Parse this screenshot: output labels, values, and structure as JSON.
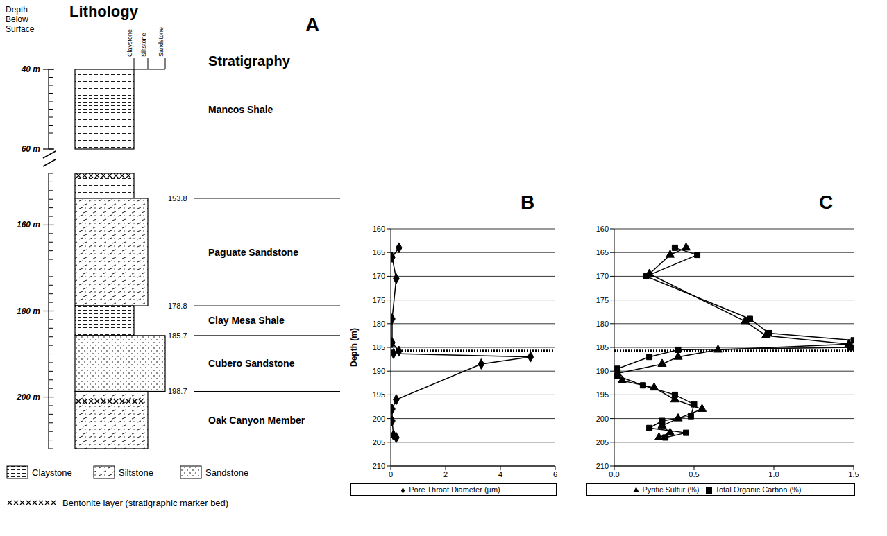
{
  "lithology": {
    "label": "A",
    "title": "Lithology",
    "depth_title": "Depth Below Surface",
    "stratigraphy_title": "Stratigraphy",
    "grain_sizes": [
      "Claystone",
      "Siltstone",
      "Sandstone"
    ],
    "sections": [
      {
        "top": 40,
        "base": 60,
        "ticks": [
          {
            "value": 40,
            "label": "40 m"
          },
          {
            "value": 60,
            "label": "60 m"
          }
        ]
      },
      {
        "top": 148,
        "base": 212,
        "ticks": [
          {
            "value": 160,
            "label": "160 m"
          },
          {
            "value": 180,
            "label": "180 m"
          },
          {
            "value": 200,
            "label": "200 m"
          }
        ]
      }
    ],
    "units": [
      {
        "name": "Mancos Shale",
        "lithology": "Claystone",
        "base": 153.8
      },
      {
        "name": "Paguate Sandstone",
        "lithology": "Siltstone",
        "base": 178.8
      },
      {
        "name": "Clay Mesa Shale",
        "lithology": "Claystone",
        "base": 185.7
      },
      {
        "name": "Cubero Sandstone",
        "lithology": "Sandstone",
        "base": 198.7
      },
      {
        "name": "Oak Canyon Member",
        "lithology": "Siltstone",
        "base": null
      }
    ],
    "bentonite_depths": [
      148.5,
      201
    ],
    "bentonite_label": "Bentonite layer (stratigraphic marker bed)"
  },
  "chart_data": [
    {
      "type": "line",
      "label": "B",
      "y_label": "Depth (m)",
      "xlim": [
        0,
        6
      ],
      "xticks": [
        0,
        2,
        4,
        6
      ],
      "ylim": [
        210,
        160
      ],
      "yticks": [
        160,
        165,
        170,
        175,
        180,
        185,
        190,
        195,
        200,
        205,
        210
      ],
      "grid": true,
      "legend": "bottom",
      "reference_depth": 185.7,
      "series": [
        {
          "name": "Pore Throat Diameter (µm)",
          "color": "#000000",
          "marker": "diamond",
          "x": [
            0.3,
            0.05,
            0.2,
            0.05,
            0.05,
            0.3,
            0.1,
            5.1,
            3.3,
            0.2,
            0.05,
            0.05,
            0.1,
            0.2
          ],
          "y": [
            164,
            166,
            170.5,
            179,
            184,
            185.8,
            186.3,
            187,
            188.5,
            196,
            198,
            200.5,
            203.5,
            204
          ]
        }
      ]
    },
    {
      "type": "line",
      "label": "C",
      "xlim": [
        0,
        1.5
      ],
      "xticks": [
        {
          "value": 0,
          "label": "0.0"
        },
        0.5,
        {
          "value": 1,
          "label": "1.0"
        },
        1.5
      ],
      "ylim": [
        210,
        160
      ],
      "yticks": [
        160,
        165,
        170,
        175,
        180,
        185,
        190,
        195,
        200,
        205,
        210
      ],
      "grid": true,
      "legend": "bottom",
      "reference_depth": 185.7,
      "series": [
        {
          "name": "Total Organic Carbon (%)",
          "color": "#000000",
          "marker": "square",
          "x": [
            0.38,
            0.52,
            0.2,
            0.85,
            0.97,
            1.5,
            1.48,
            0.4,
            0.22,
            0.02,
            0.02,
            0.18,
            0.38,
            0.5,
            0.48,
            0.3,
            0.22,
            0.45,
            0.32
          ],
          "y": [
            164,
            165.5,
            170,
            179,
            182,
            183.5,
            185,
            185.5,
            187,
            189.5,
            191,
            193,
            195,
            197,
            199.5,
            200.5,
            202,
            203,
            204
          ]
        },
        {
          "name": "Pyritic Sulfur (%)",
          "color": "#000000",
          "marker": "triangle",
          "x": [
            0.45,
            0.35,
            0.22,
            0.82,
            0.95,
            1.47,
            0.65,
            0.4,
            0.3,
            0.02,
            0.05,
            0.25,
            0.38,
            0.55,
            0.4,
            0.3,
            0.35,
            0.28
          ],
          "y": [
            164,
            165.5,
            169.5,
            179.5,
            182.5,
            184.3,
            185.5,
            187,
            188.5,
            190.5,
            192,
            193.5,
            196,
            198,
            200,
            201.5,
            203,
            204
          ]
        }
      ]
    }
  ]
}
